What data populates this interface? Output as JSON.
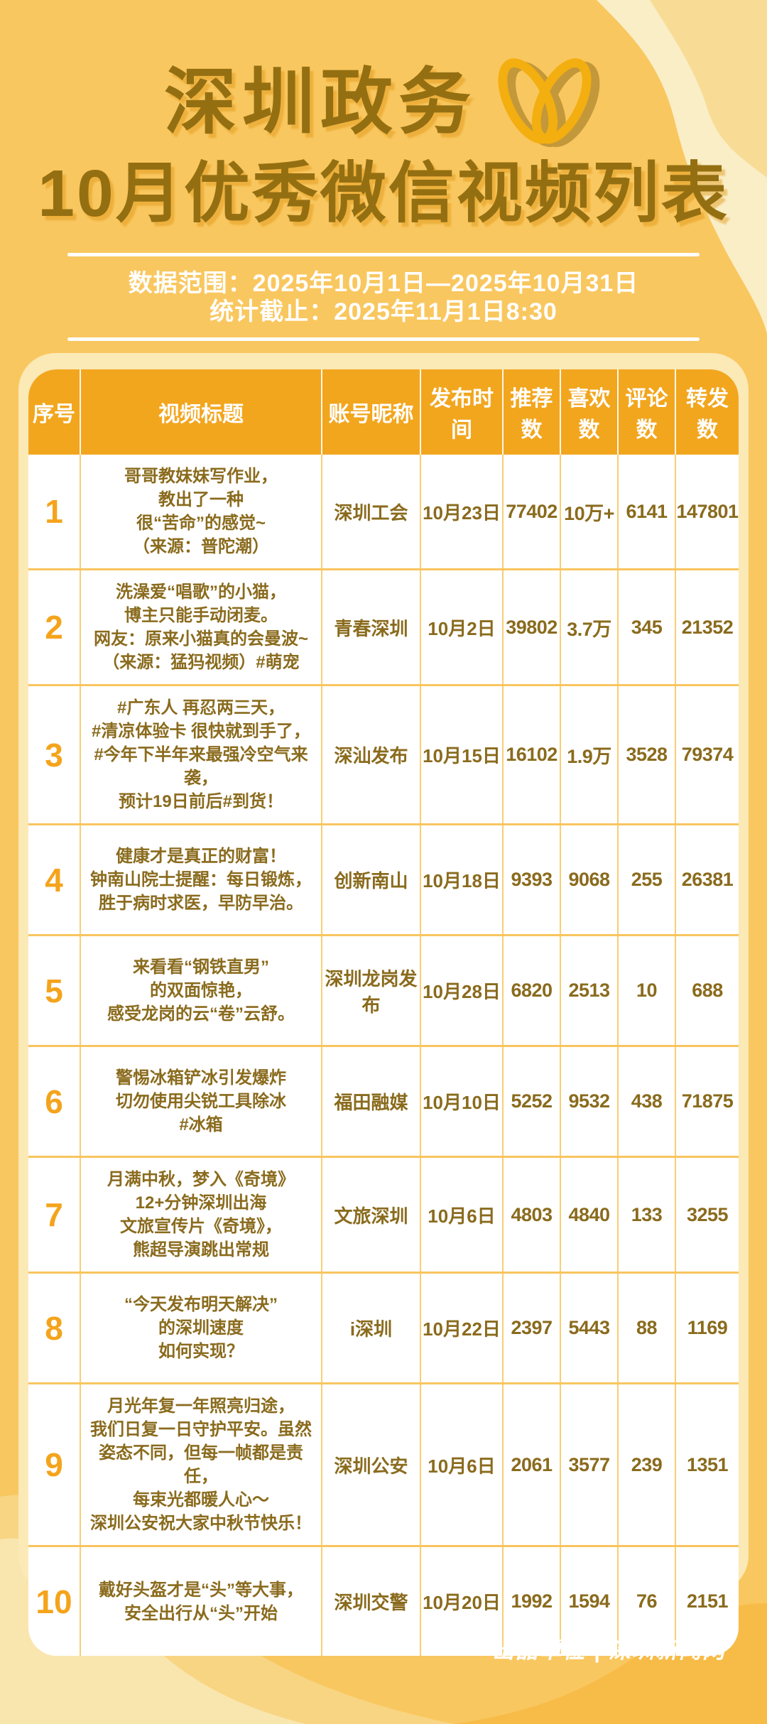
{
  "header": {
    "title_line1": "深圳政务",
    "title_line2": "10月优秀微信视频列表",
    "data_range": "数据范围：2025年10月1日—2025年10月31日",
    "stats_deadline": "统计截止：2025年11月1日8:30"
  },
  "icons": {
    "logo": "video-channels-butterfly-logo"
  },
  "colors": {
    "background": "#f9c75f",
    "title_text": "#946f12",
    "table_header_bg": "#f2a61e",
    "table_header_text": "#ffffff",
    "cell_text": "#8a6b1d",
    "rank_text": "#f4a41c",
    "card_bg": "#fbe9b6",
    "table_bg": "#ffffff",
    "grid_line": "#f8ce74",
    "row_line": "#f8c55e",
    "logo_gold": "#f3ae10",
    "deco_light": "#faeec7",
    "deco_medium": "#f8dc96",
    "deco_dark": "#f7bb47",
    "footer_text": "#ffffff"
  },
  "table": {
    "headers": [
      "序号",
      "视频标题",
      "账号昵称",
      "发布时间",
      "推荐数",
      "喜欢数",
      "评论数",
      "转发数"
    ],
    "rows": [
      {
        "no": "1",
        "title": "哥哥教妹妹写作业，\n教出了一种\n很“苦命”的感觉~\n（来源：普陀潮）",
        "account": "深圳工会",
        "date": "10月23日",
        "recommend": "77402",
        "like": "10万+",
        "comment": "6141",
        "share": "147801"
      },
      {
        "no": "2",
        "title": "洗澡爱“唱歌”的小猫，\n博主只能手动闭麦。\n网友：原来小猫真的会曼波~\n（来源：猛犸视频）#萌宠",
        "account": "青春深圳",
        "date": "10月2日",
        "recommend": "39802",
        "like": "3.7万",
        "comment": "345",
        "share": "21352"
      },
      {
        "no": "3",
        "title": "#广东人 再忍两三天，\n#清凉体验卡 很快就到手了，\n#今年下半年来最强冷空气来袭，\n预计19日前后#到货！",
        "account": "深汕发布",
        "date": "10月15日",
        "recommend": "16102",
        "like": "1.9万",
        "comment": "3528",
        "share": "79374"
      },
      {
        "no": "4",
        "title": "健康才是真正的财富！\n钟南山院士提醒：每日锻炼，\n胜于病时求医，早防早治。",
        "account": "创新南山",
        "date": "10月18日",
        "recommend": "9393",
        "like": "9068",
        "comment": "255",
        "share": "26381"
      },
      {
        "no": "5",
        "title": "来看看“钢铁直男”\n的双面惊艳，\n感受龙岗的云“卷”云舒。",
        "account": "深圳龙岗发布",
        "date": "10月28日",
        "recommend": "6820",
        "like": "2513",
        "comment": "10",
        "share": "688"
      },
      {
        "no": "6",
        "title": "警惕冰箱铲冰引发爆炸\n切勿使用尖锐工具除冰\n#冰箱",
        "account": "福田融媒",
        "date": "10月10日",
        "recommend": "5252",
        "like": "9532",
        "comment": "438",
        "share": "71875"
      },
      {
        "no": "7",
        "title": "月满中秋，梦入《奇境》\n12+分钟深圳出海\n文旅宣传片《奇境》，\n熊超导演跳出常规",
        "account": "文旅深圳",
        "date": "10月6日",
        "recommend": "4803",
        "like": "4840",
        "comment": "133",
        "share": "3255"
      },
      {
        "no": "8",
        "title": "“今天发布明天解决”\n的深圳速度\n如何实现？",
        "account": "i深圳",
        "date": "10月22日",
        "recommend": "2397",
        "like": "5443",
        "comment": "88",
        "share": "1169"
      },
      {
        "no": "9",
        "title": "月光年复一年照亮归途，\n我们日复一日守护平安。虽然\n姿态不同，但每一帧都是责任，\n每束光都暖人心～\n深圳公安祝大家中秋节快乐！",
        "account": "深圳公安",
        "date": "10月6日",
        "recommend": "2061",
        "like": "3577",
        "comment": "239",
        "share": "1351"
      },
      {
        "no": "10",
        "title": "戴好头盔才是“头”等大事，\n安全出行从“头”开始",
        "account": "深圳交警",
        "date": "10月20日",
        "recommend": "1992",
        "like": "1594",
        "comment": "76",
        "share": "2151"
      }
    ]
  },
  "footer": {
    "credit": "出品单位 | 深圳新闻网"
  }
}
